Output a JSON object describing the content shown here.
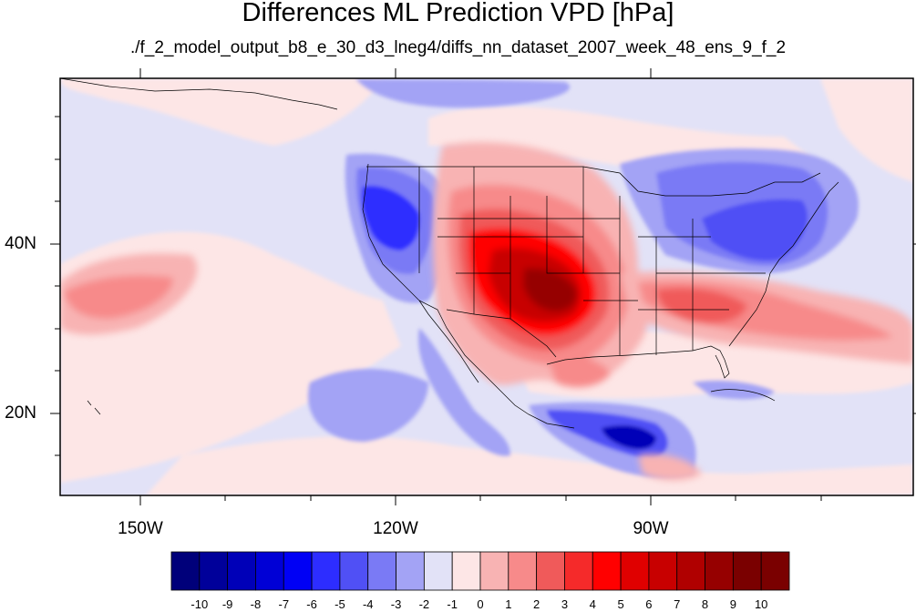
{
  "header": {
    "title": "Differences ML Prediction VPD [hPa]",
    "subtitle": "./f_2_model_output_b8_e_30_d3_lneg4/diffs_nn_dataset_2007_week_48_ens_9_f_2"
  },
  "axes": {
    "lat_labels": [
      "40N",
      "20N"
    ],
    "lon_labels": [
      "150W",
      "120W",
      "90W"
    ]
  },
  "colorbar": {
    "labels": [
      "-10",
      "-9",
      "-8",
      "-7",
      "-6",
      "-5",
      "-4",
      "-3",
      "-2",
      "-1",
      "0",
      "1",
      "2",
      "3",
      "4",
      "5",
      "6",
      "7",
      "8",
      "9",
      "10"
    ],
    "colors": [
      "#00007a",
      "#00009a",
      "#0000b8",
      "#0000d6",
      "#0000f5",
      "#2d2dff",
      "#5050f5",
      "#7a7af5",
      "#a3a3f5",
      "#e2e2f7",
      "#fde6e6",
      "#f8b3b3",
      "#f78a8a",
      "#f05a5a",
      "#f52a2a",
      "#ff0000",
      "#e00000",
      "#c80000",
      "#b00000",
      "#960000",
      "#7a0000"
    ]
  },
  "map": {
    "projection": "cylindrical-equidistant",
    "lon_range": [
      "160W",
      "60W"
    ],
    "lat_range": [
      "10N",
      "60N"
    ],
    "background_color": "#e2e2f7"
  }
}
